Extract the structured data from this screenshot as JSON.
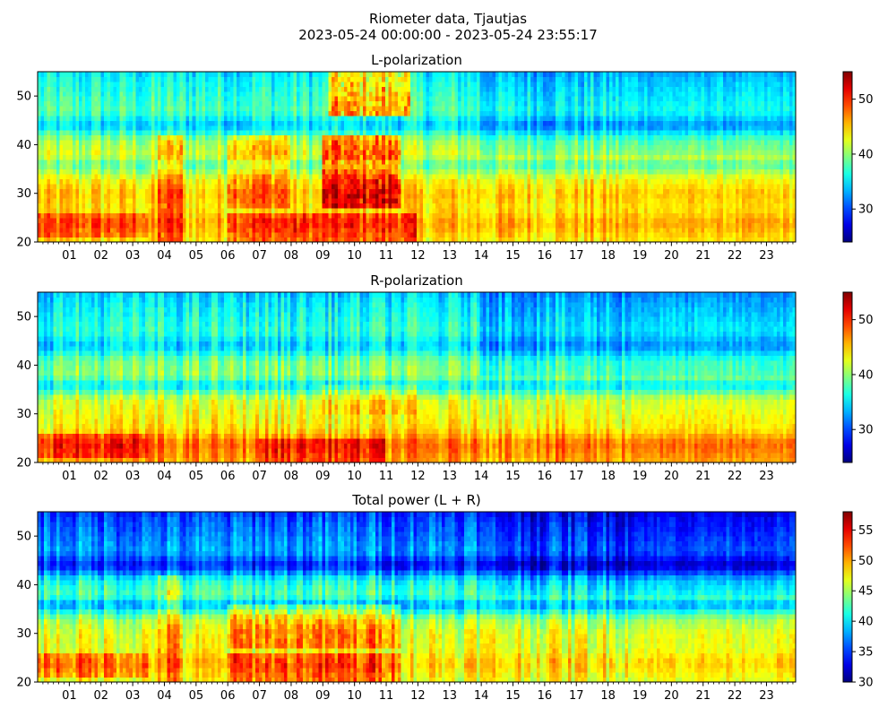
{
  "figure": {
    "title_line1": "Riometer data, Tjautjas",
    "title_line2": "2023-05-24 00:00:00 - 2023-05-24 23:55:17"
  },
  "chart_data": [
    {
      "type": "heatmap",
      "title": "L-polarization",
      "xlabel": "",
      "ylabel": "",
      "x_ticks": [
        "01",
        "02",
        "03",
        "04",
        "05",
        "06",
        "07",
        "08",
        "09",
        "10",
        "11",
        "12",
        "13",
        "14",
        "15",
        "16",
        "17",
        "18",
        "19",
        "20",
        "21",
        "22",
        "23"
      ],
      "x_range_hours": [
        0,
        23.92
      ],
      "y_ticks": [
        20,
        30,
        40,
        50
      ],
      "ylim": [
        20,
        55
      ],
      "colorbar": {
        "range": [
          24,
          55
        ],
        "ticks": [
          30,
          40,
          50
        ],
        "colormap": "jet"
      },
      "base_level": 40,
      "band_profile": {
        "y": [
          20,
          24,
          27,
          30,
          33,
          36,
          38,
          41,
          44,
          47,
          50,
          53,
          55
        ],
        "v": [
          44,
          46,
          44,
          45,
          43,
          38,
          42,
          40,
          34,
          38,
          37,
          36,
          35
        ]
      },
      "enhancements": [
        {
          "x": [
            9.0,
            11.5
          ],
          "y": [
            27,
            42
          ],
          "delta": 7
        },
        {
          "x": [
            6.0,
            8.0
          ],
          "y": [
            27,
            42
          ],
          "delta": 4
        },
        {
          "x": [
            9.2,
            11.8
          ],
          "y": [
            46,
            55
          ],
          "delta": 8
        },
        {
          "x": [
            3.8,
            4.6
          ],
          "y": [
            20,
            42
          ],
          "delta": 4
        },
        {
          "x": [
            0.0,
            3.5
          ],
          "y": [
            21,
            26
          ],
          "delta": 3
        },
        {
          "x": [
            6.0,
            12.0
          ],
          "y": [
            20,
            26
          ],
          "delta": 4
        }
      ]
    },
    {
      "type": "heatmap",
      "title": "R-polarization",
      "xlabel": "",
      "ylabel": "",
      "x_ticks": [
        "01",
        "02",
        "03",
        "04",
        "05",
        "06",
        "07",
        "08",
        "09",
        "10",
        "11",
        "12",
        "13",
        "14",
        "15",
        "16",
        "17",
        "18",
        "19",
        "20",
        "21",
        "22",
        "23"
      ],
      "x_range_hours": [
        0,
        23.92
      ],
      "y_ticks": [
        20,
        30,
        40,
        50
      ],
      "ylim": [
        20,
        55
      ],
      "colorbar": {
        "range": [
          24,
          55
        ],
        "ticks": [
          30,
          40,
          50
        ],
        "colormap": "jet"
      },
      "base_level": 39,
      "band_profile": {
        "y": [
          20,
          24,
          27,
          30,
          33,
          36,
          38,
          41,
          44,
          47,
          50,
          53,
          55
        ],
        "v": [
          46,
          48,
          44,
          43,
          42,
          35,
          40,
          39,
          34,
          37,
          36,
          35,
          34
        ]
      },
      "enhancements": [
        {
          "x": [
            0.0,
            3.5
          ],
          "y": [
            21,
            26
          ],
          "delta": 3
        },
        {
          "x": [
            7.0,
            11.0
          ],
          "y": [
            20,
            25
          ],
          "delta": 3
        },
        {
          "x": [
            9.0,
            12.0
          ],
          "y": [
            30,
            36
          ],
          "delta": 2
        }
      ]
    },
    {
      "type": "heatmap",
      "title": "Total power (L + R)",
      "xlabel": "",
      "ylabel": "",
      "x_ticks": [
        "01",
        "02",
        "03",
        "04",
        "05",
        "06",
        "07",
        "08",
        "09",
        "10",
        "11",
        "12",
        "13",
        "14",
        "15",
        "16",
        "17",
        "18",
        "19",
        "20",
        "21",
        "22",
        "23"
      ],
      "x_range_hours": [
        0,
        23.92
      ],
      "y_ticks": [
        20,
        30,
        40,
        50
      ],
      "ylim": [
        20,
        55
      ],
      "colorbar": {
        "range": [
          30,
          58
        ],
        "ticks": [
          30,
          35,
          40,
          45,
          50,
          55
        ],
        "colormap": "jet"
      },
      "base_level": 42,
      "band_profile": {
        "y": [
          20,
          24,
          27,
          30,
          33,
          36,
          38,
          41,
          44,
          47,
          50,
          53,
          55
        ],
        "v": [
          47,
          49,
          47,
          47,
          45,
          38,
          43,
          41,
          34,
          38,
          37,
          36,
          35
        ]
      },
      "enhancements": [
        {
          "x": [
            6.0,
            11.5
          ],
          "y": [
            27,
            36
          ],
          "delta": 4
        },
        {
          "x": [
            0.0,
            3.5
          ],
          "y": [
            21,
            26
          ],
          "delta": 3
        },
        {
          "x": [
            6.0,
            11.5
          ],
          "y": [
            20,
            26
          ],
          "delta": 4
        },
        {
          "x": [
            3.8,
            4.6
          ],
          "y": [
            20,
            42
          ],
          "delta": 3
        }
      ]
    }
  ]
}
